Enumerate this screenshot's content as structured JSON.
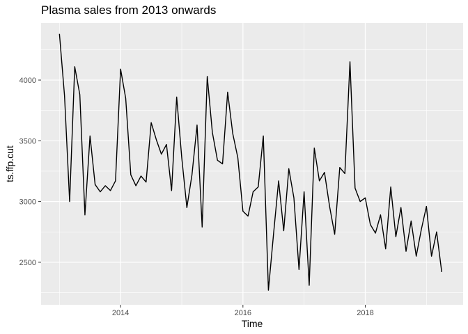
{
  "chart_data": {
    "type": "line",
    "title": "Plasma sales from 2013 onwards",
    "xlabel": "Time",
    "ylabel": "ts.ffp.cut",
    "xlim": [
      2012.7,
      2019.6
    ],
    "ylim": [
      2150,
      4470
    ],
    "x_ticks": [
      2014,
      2016,
      2018
    ],
    "y_ticks": [
      2500,
      3000,
      3500,
      4000
    ],
    "x_minor_ticks": [
      2013,
      2015,
      2017,
      2019
    ],
    "y_minor_ticks": [
      2250,
      2750,
      3250,
      3750,
      4250
    ],
    "grid": true,
    "legend": "none",
    "colors": {
      "panel": "#ebebeb",
      "grid": "#ffffff",
      "line": "#000000"
    },
    "start": {
      "year": 2013,
      "month": 1
    },
    "frequency": 12,
    "series": [
      {
        "values": [
          4380,
          3870,
          3000,
          4110,
          3880,
          2890,
          3540,
          3140,
          3080,
          3130,
          3090,
          3170,
          4090,
          3850,
          3220,
          3130,
          3210,
          3160,
          3650,
          3510,
          3390,
          3470,
          3090,
          3860,
          3360,
          2950,
          3220,
          3630,
          2790,
          4030,
          3570,
          3340,
          3310,
          3900,
          3560,
          3360,
          2920,
          2880,
          3080,
          3120,
          3540,
          2270,
          2730,
          3170,
          2760,
          3270,
          3030,
          2440,
          3080,
          2310,
          3440,
          3170,
          3240,
          2960,
          2730,
          3280,
          3230,
          4150,
          3110,
          3000,
          3030,
          2810,
          2740,
          2890,
          2610,
          3120,
          2710,
          2950,
          2590,
          2840,
          2550,
          2770,
          2960,
          2550,
          2750,
          2420
        ]
      }
    ]
  }
}
